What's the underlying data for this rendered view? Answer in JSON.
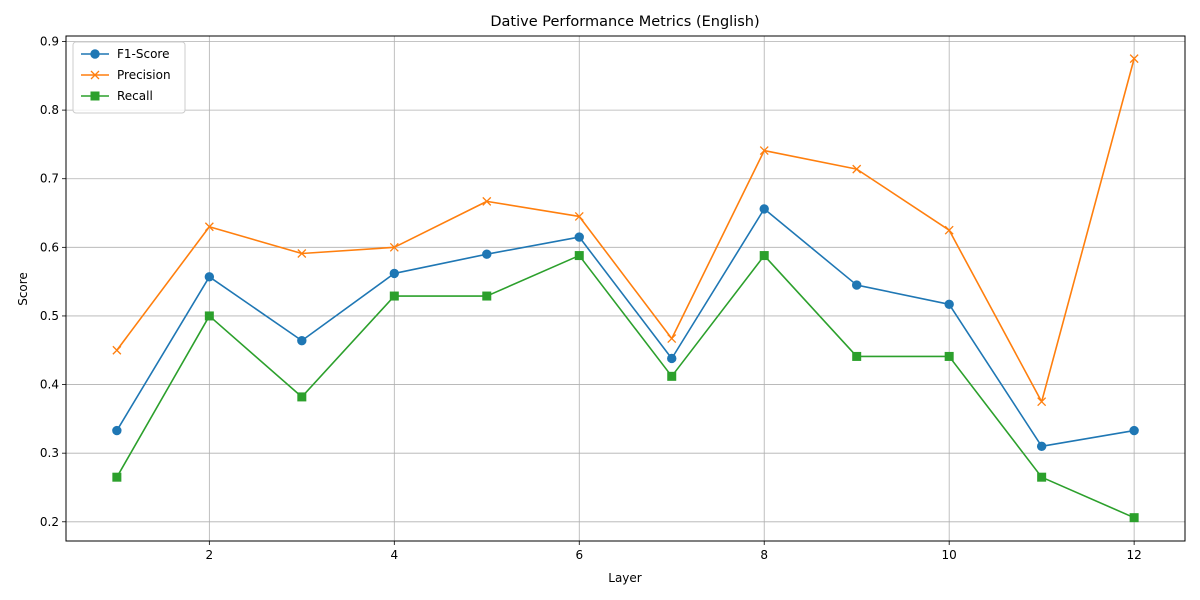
{
  "chart_data": {
    "type": "line",
    "title": "Dative Performance Metrics (English)",
    "xlabel": "Layer",
    "ylabel": "Score",
    "x": [
      1,
      2,
      3,
      4,
      5,
      6,
      7,
      8,
      9,
      10,
      11,
      12
    ],
    "xlim": [
      0.45,
      12.55
    ],
    "ylim": [
      0.172,
      0.908
    ],
    "xticks": [
      2,
      4,
      6,
      8,
      10,
      12
    ],
    "yticks": [
      0.2,
      0.3,
      0.4,
      0.5,
      0.6,
      0.7,
      0.8,
      0.9
    ],
    "xtick_labels": [
      "2",
      "4",
      "6",
      "8",
      "10",
      "12"
    ],
    "ytick_labels": [
      "0.2",
      "0.3",
      "0.4",
      "0.5",
      "0.6",
      "0.7",
      "0.8",
      "0.9"
    ],
    "grid": true,
    "legend_position": "top-left",
    "series": [
      {
        "name": "F1-Score",
        "color": "#1f77b4",
        "marker": "circle",
        "values": [
          0.333,
          0.557,
          0.464,
          0.562,
          0.59,
          0.615,
          0.438,
          0.656,
          0.545,
          0.517,
          0.31,
          0.333
        ]
      },
      {
        "name": "Precision",
        "color": "#ff7f0e",
        "marker": "x",
        "values": [
          0.45,
          0.63,
          0.591,
          0.6,
          0.667,
          0.645,
          0.467,
          0.741,
          0.714,
          0.625,
          0.375,
          0.875
        ]
      },
      {
        "name": "Recall",
        "color": "#2ca02c",
        "marker": "square",
        "values": [
          0.265,
          0.5,
          0.382,
          0.529,
          0.529,
          0.588,
          0.412,
          0.588,
          0.441,
          0.441,
          0.265,
          0.206
        ]
      }
    ]
  }
}
